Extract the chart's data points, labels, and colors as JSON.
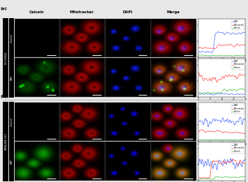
{
  "title_a": "(a)",
  "title_b": "(b)",
  "col_labels": [
    "Calcein",
    "Mitotracker",
    "DAPI",
    "Merge"
  ],
  "group_label_a": "NCI-H460",
  "group_label_b": "MDA-MB-231",
  "row_labels": [
    "Control",
    "RAP",
    "Control",
    "RAP"
  ],
  "legend_labels": [
    "DAPI",
    "Mitotracker",
    "Calcein"
  ],
  "line_colors": {
    "dapi": "#4466ff",
    "mito": "#ff3333",
    "calcein": "#33bb33"
  },
  "xlabel": "Distance (μm)",
  "ylabel": "Intensity (a.u.)",
  "bg_color": "#f5f5f5"
}
